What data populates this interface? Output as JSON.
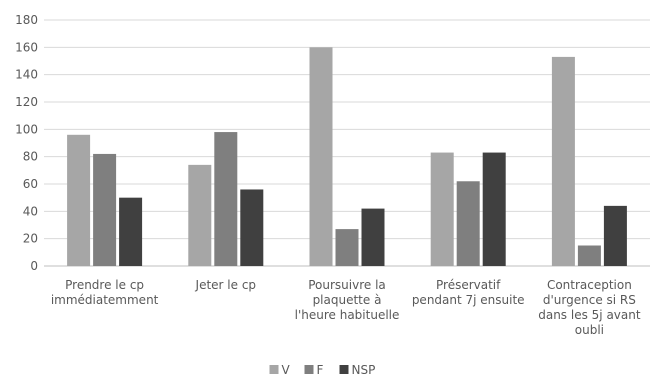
{
  "chart_data": {
    "type": "bar",
    "title": "",
    "xlabel": "",
    "ylabel": "",
    "ylim": [
      0,
      180
    ],
    "yticks": [
      0,
      20,
      40,
      60,
      80,
      100,
      120,
      140,
      160,
      180
    ],
    "grid": true,
    "legend_position": "bottom",
    "categories": [
      [
        "Prendre le cp",
        "immédiatemment"
      ],
      [
        "Jeter le cp"
      ],
      [
        "Poursuivre la",
        "plaquette à",
        "l'heure habituelle"
      ],
      [
        "Préservatif",
        "pendant 7j ensuite"
      ],
      [
        "Contraception",
        "d'urgence si RS",
        "dans les 5j avant",
        "oubli"
      ]
    ],
    "series": [
      {
        "name": "V",
        "color": "#a6a6a6",
        "values": [
          96,
          74,
          160,
          83,
          153
        ]
      },
      {
        "name": "F",
        "color": "#7f7f7f",
        "values": [
          82,
          98,
          27,
          62,
          15
        ]
      },
      {
        "name": "NSP",
        "color": "#404040",
        "values": [
          50,
          56,
          42,
          83,
          44
        ]
      }
    ]
  }
}
